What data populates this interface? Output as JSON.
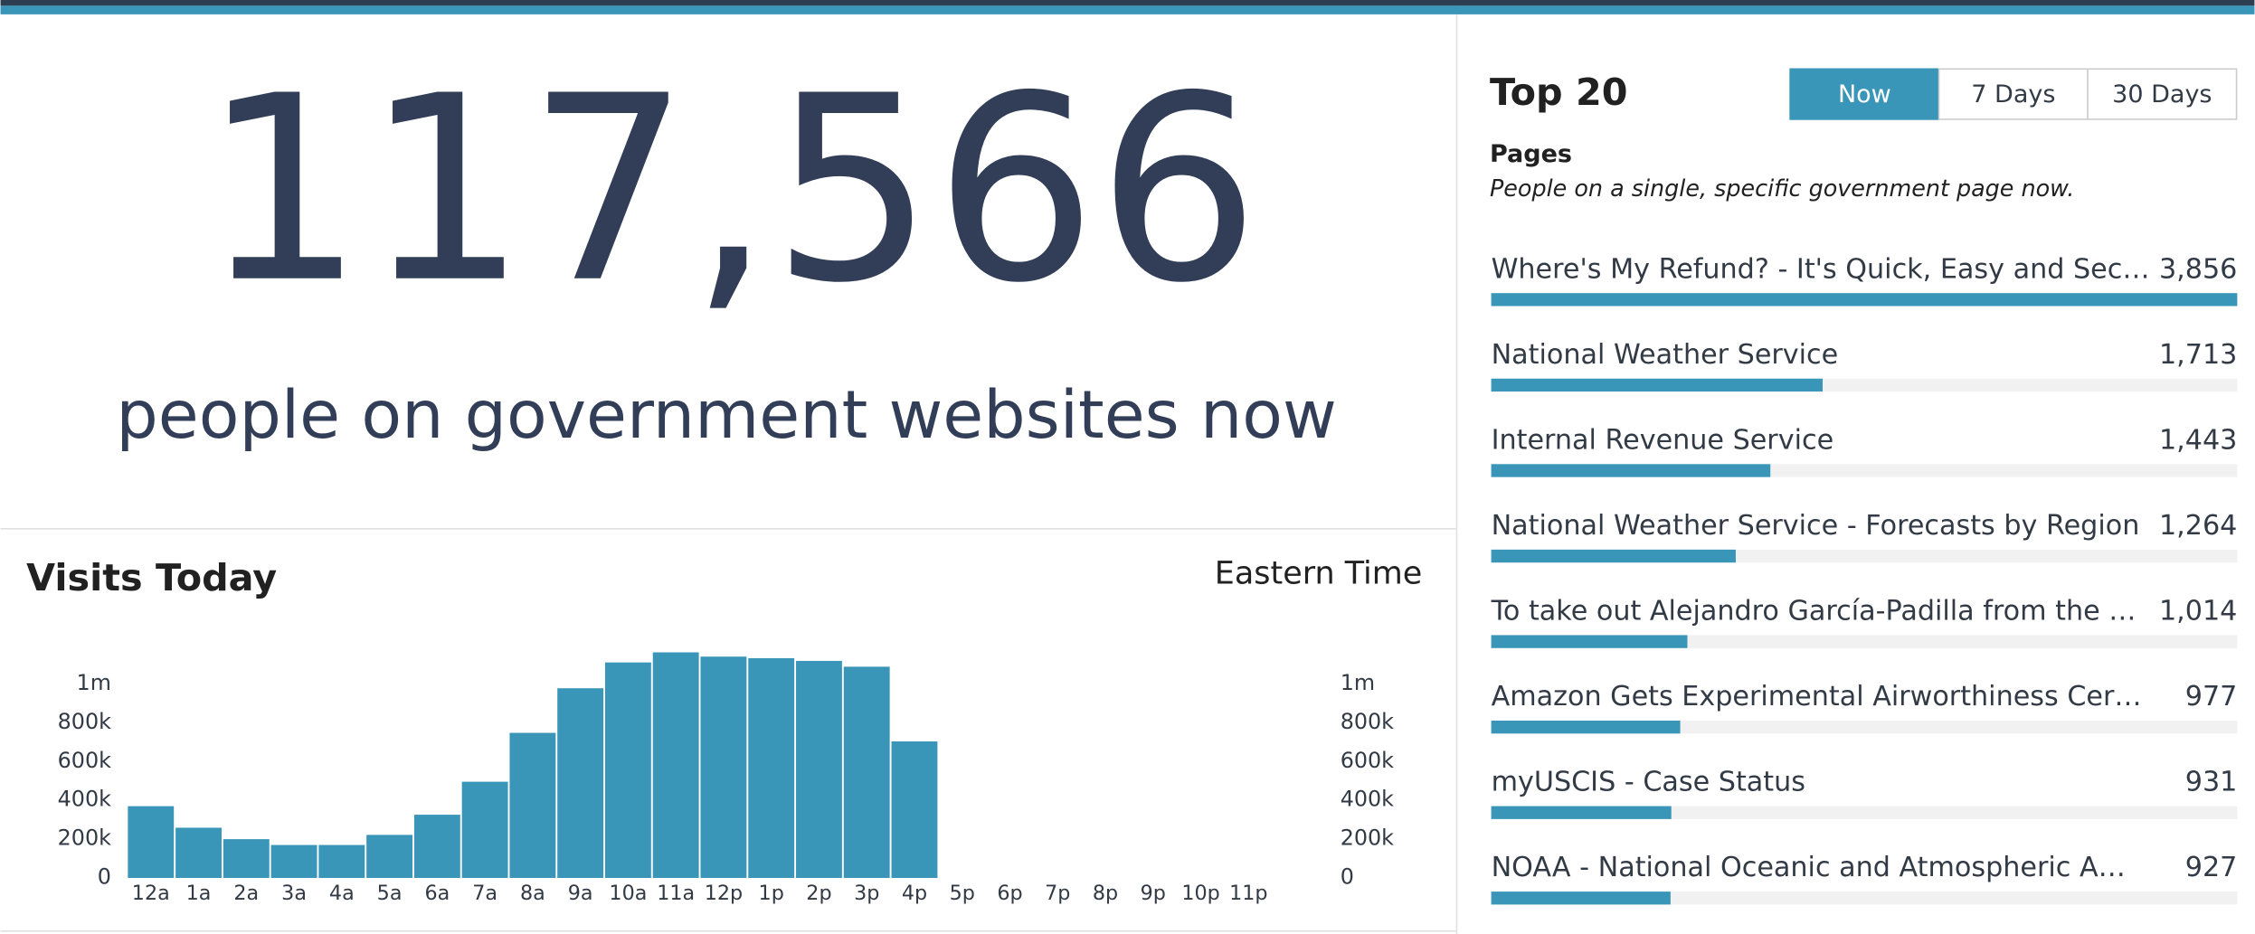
{
  "header": {
    "count": "117,566",
    "caption": "people on government websites now"
  },
  "visits_today": {
    "title": "Visits Today",
    "timezone": "Eastern Time",
    "chart_data": {
      "type": "bar",
      "color": "#3a96b8",
      "categories": [
        "12a",
        "1a",
        "2a",
        "3a",
        "4a",
        "5a",
        "6a",
        "7a",
        "8a",
        "9a",
        "10a",
        "11a",
        "12p",
        "1p",
        "2p",
        "3p",
        "4p",
        "5p",
        "6p",
        "7p",
        "8p",
        "9p",
        "10p",
        "11p"
      ],
      "values": [
        370000,
        259000,
        200000,
        170000,
        170000,
        222000,
        326000,
        496000,
        748000,
        978000,
        1111000,
        1163000,
        1141000,
        1133000,
        1119000,
        1089000,
        704000,
        null,
        null,
        null,
        null,
        null,
        null,
        null
      ],
      "ylim": [
        0,
        1200000
      ],
      "yticks": [
        0,
        {
          "value": 200000,
          "label": "200k"
        },
        {
          "value": 400000,
          "label": "400k"
        },
        {
          "value": 600000,
          "label": "600k"
        },
        {
          "value": 800000,
          "label": "800k"
        },
        {
          "value": 1000000,
          "label": "1m"
        }
      ]
    }
  },
  "top_pages": {
    "title": "Top 20",
    "tabs": [
      "Now",
      "7 Days",
      "30 Days"
    ],
    "active_tab": 0,
    "section": "Pages",
    "description": "People on a single, specific government page now.",
    "color": "#3a96b8",
    "items": [
      {
        "label": "Where's My Refund? - It's Quick, Easy and Sec…",
        "value": 3856,
        "value_label": "3,856"
      },
      {
        "label": "National Weather Service",
        "value": 1713,
        "value_label": "1,713"
      },
      {
        "label": "Internal Revenue Service",
        "value": 1443,
        "value_label": "1,443"
      },
      {
        "label": "National Weather Service - Forecasts by Region",
        "value": 1264,
        "value_label": "1,264"
      },
      {
        "label": "To take out Alejandro García-Padilla from the …",
        "value": 1014,
        "value_label": "1,014"
      },
      {
        "label": "Amazon Gets Experimental Airworthiness Cer…",
        "value": 977,
        "value_label": "977"
      },
      {
        "label": "myUSCIS - Case Status",
        "value": 931,
        "value_label": "931"
      },
      {
        "label": "NOAA - National Oceanic and Atmospheric A…",
        "value": 927,
        "value_label": "927"
      }
    ]
  }
}
